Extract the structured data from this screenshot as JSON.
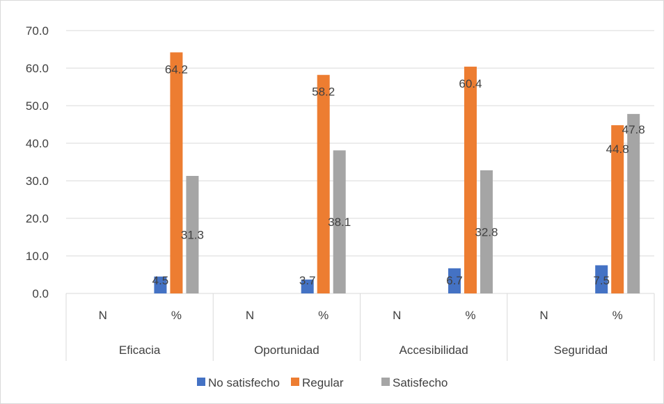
{
  "chart_data": {
    "type": "bar",
    "title": "",
    "xlabel": "",
    "ylabel": "",
    "ylim": [
      0,
      70
    ],
    "yticks": [
      "0.0",
      "10.0",
      "20.0",
      "30.0",
      "40.0",
      "50.0",
      "60.0",
      "70.0"
    ],
    "grid": true,
    "legend_position": "bottom",
    "groups": [
      {
        "label": "Eficacia",
        "subcategories": [
          "N",
          "%"
        ]
      },
      {
        "label": "Oportunidad",
        "subcategories": [
          "N",
          "%"
        ]
      },
      {
        "label": "Accesibilidad",
        "subcategories": [
          "N",
          "%"
        ]
      },
      {
        "label": "Seguridad",
        "subcategories": [
          "N",
          "%"
        ]
      }
    ],
    "categories": [
      "Eficacia N",
      "Eficacia %",
      "Oportunidad N",
      "Oportunidad %",
      "Accesibilidad N",
      "Accesibilidad %",
      "Seguridad N",
      "Seguridad %"
    ],
    "series": [
      {
        "name": "No satisfecho",
        "color": "#4472c4",
        "values": [
          null,
          4.5,
          null,
          3.7,
          null,
          6.7,
          null,
          7.5
        ],
        "labels": [
          null,
          "4.5",
          null,
          "3.7",
          null,
          "6.7",
          null,
          "7.5"
        ]
      },
      {
        "name": "Regular",
        "color": "#ed7d31",
        "values": [
          null,
          64.2,
          null,
          58.2,
          null,
          60.4,
          null,
          44.8
        ],
        "labels": [
          null,
          "64.2",
          null,
          "58.2",
          null,
          "60.4",
          null,
          "44.8"
        ]
      },
      {
        "name": "Satisfecho",
        "color": "#a5a5a5",
        "values": [
          null,
          31.3,
          null,
          38.1,
          null,
          32.8,
          null,
          47.8
        ],
        "labels": [
          null,
          "31.3",
          null,
          "38.1",
          null,
          "32.8",
          null,
          "47.8"
        ]
      }
    ]
  }
}
